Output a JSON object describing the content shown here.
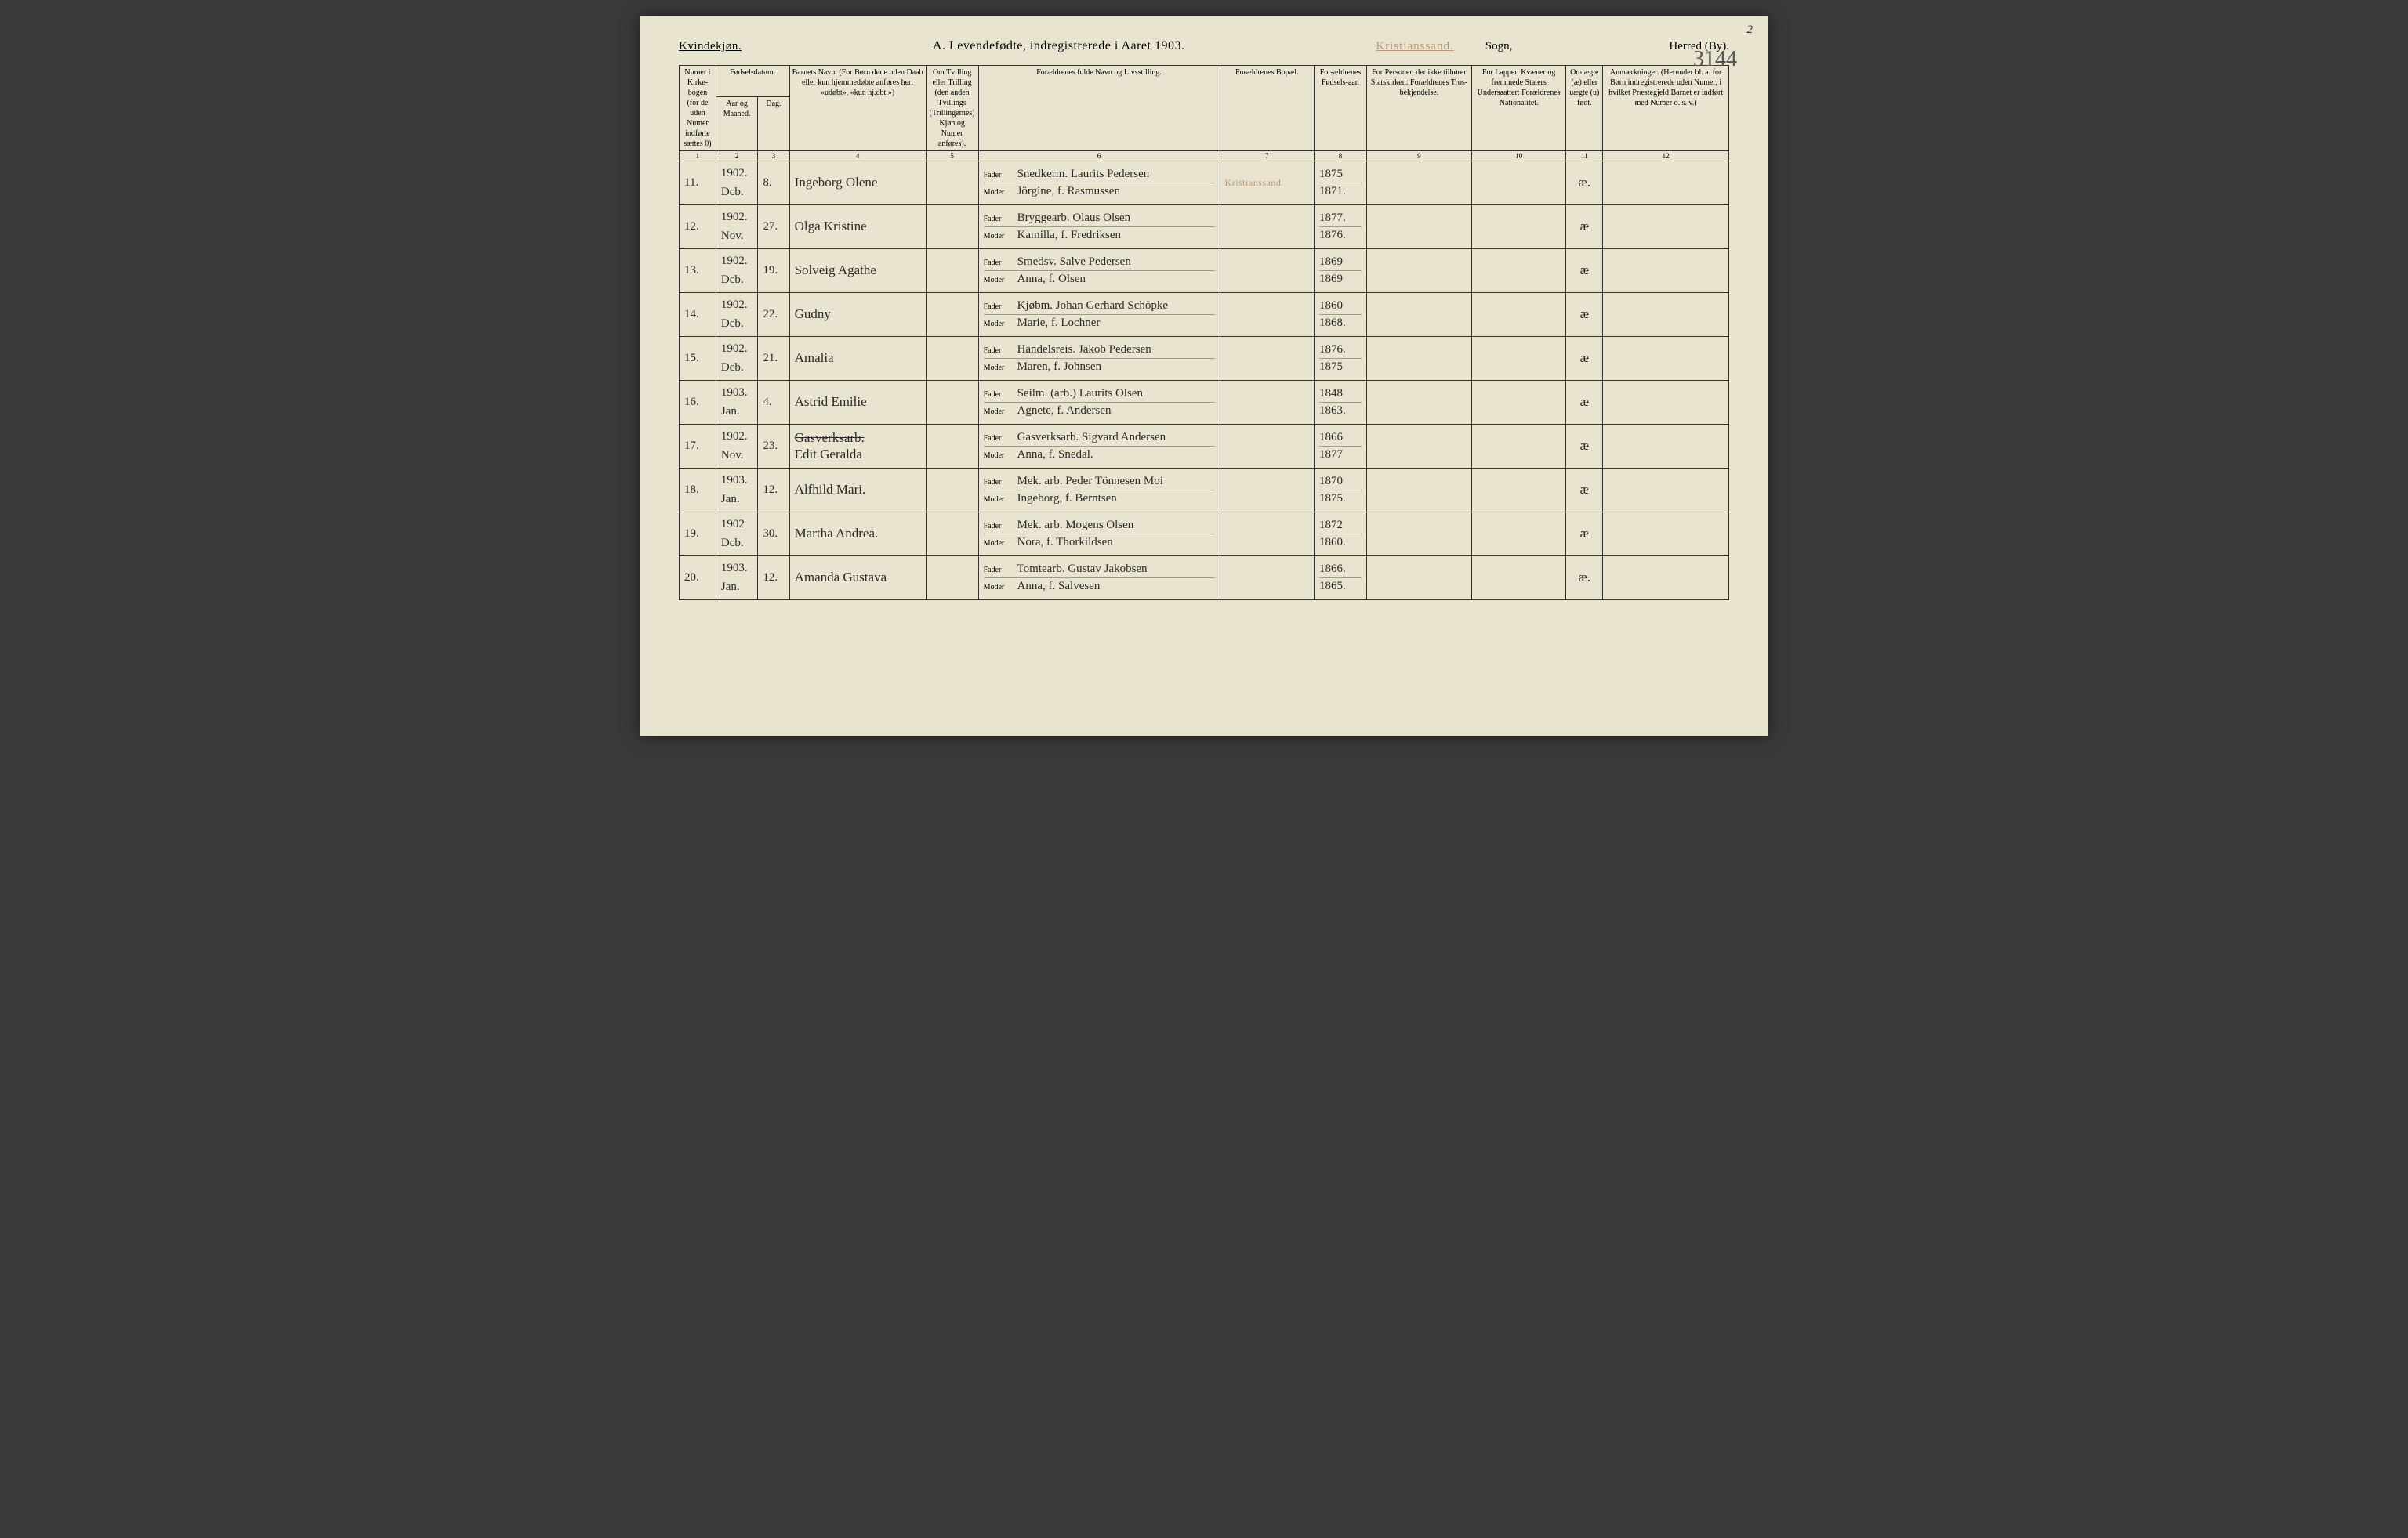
{
  "pageNumberTop": "2",
  "handwrittenTopRight": "3144",
  "genderLabel": "Kvindekjøn.",
  "title": "A.  Levendefødte, indregistrerede i Aaret 190",
  "titleYearDigit": "3",
  "stamp": "Kristianssand.",
  "sognLabel": "Sogn,",
  "herredLabel": "Herred (By).",
  "columns": {
    "c1": "Numer i Kirke-bogen (for de uden Numer indførte sættes 0)",
    "c2top": "Fødselsdatum.",
    "c2a": "Aar og Maaned.",
    "c2b": "Dag.",
    "c3": "Barnets Navn.\n(For Børn døde uden Daab eller kun hjemmedøbte anføres her: «udøbt», «kun hj.dbt.»)",
    "c4": "Om Tvilling eller Trilling (den anden Tvillings (Trillingernes) Kjøn og Numer anføres).",
    "c5": "Forældrenes fulde Navn og Livsstilling.",
    "c6": "Forældrenes Bopæl.",
    "c7": "For-ældrenes Fødsels-aar.",
    "c8": "For Personer, der ikke tilhører Statskirken: Forældrenes Tros-bekjendelse.",
    "c9": "For Lapper, Kvæner og fremmede Staters Undersaatter: Forældrenes Nationalitet.",
    "c10": "Om ægte (æ) eller uægte (u) født.",
    "c11": "Anmærkninger.\n(Herunder bl. a. for Børn indregistrerede uden Numer, i hvilket Præstegjeld Barnet er indført med Numer o. s. v.)"
  },
  "colnums": [
    "1",
    "2",
    "3",
    "4",
    "5",
    "6",
    "7",
    "8",
    "9",
    "10",
    "11",
    "12"
  ],
  "faderLabel": "Fader",
  "moderLabel": "Moder",
  "rows": [
    {
      "num": "11.",
      "year": "1902.",
      "month": "Dcb.",
      "day": "8.",
      "name": "Ingeborg Olene",
      "fader": "Snedkerm. Laurits Pedersen",
      "moder": "Jörgine, f. Rasmussen",
      "residence": "Kristianssand.",
      "residenceStamp": true,
      "fy": "1875",
      "my": "1871.",
      "legit": "æ."
    },
    {
      "num": "12.",
      "year": "1902.",
      "month": "Nov.",
      "day": "27.",
      "name": "Olga Kristine",
      "fader": "Bryggearb. Olaus Olsen",
      "moder": "Kamilla, f. Fredriksen",
      "residence": "",
      "fy": "1877.",
      "my": "1876.",
      "legit": "æ"
    },
    {
      "num": "13.",
      "year": "1902.",
      "month": "Dcb.",
      "day": "19.",
      "name": "Solveig Agathe",
      "fader": "Smedsv. Salve Pedersen",
      "moder": "Anna, f. Olsen",
      "residence": "",
      "fy": "1869",
      "my": "1869",
      "legit": "æ"
    },
    {
      "num": "14.",
      "year": "1902.",
      "month": "Dcb.",
      "day": "22.",
      "name": "Gudny",
      "fader": "Kjøbm. Johan Gerhard Schöpke",
      "moder": "Marie, f. Lochner",
      "residence": "",
      "fy": "1860",
      "my": "1868.",
      "legit": "æ"
    },
    {
      "num": "15.",
      "year": "1902.",
      "month": "Dcb.",
      "day": "21.",
      "name": "Amalia",
      "fader": "Handelsreis. Jakob Pedersen",
      "moder": "Maren, f. Johnsen",
      "residence": "",
      "fy": "1876.",
      "my": "1875",
      "legit": "æ"
    },
    {
      "num": "16.",
      "year": "1903.",
      "month": "Jan.",
      "day": "4.",
      "name": "Astrid Emilie",
      "fader": "Seilm. (arb.) Laurits Olsen",
      "moder": "Agnete, f. Andersen",
      "residence": "",
      "fy": "1848",
      "my": "1863.",
      "legit": "æ"
    },
    {
      "num": "17.",
      "year": "1902.",
      "month": "Nov.",
      "day": "23.",
      "name": "Edit Geralda",
      "nameStruck": "Gasverksarb.",
      "fader": "Gasverksarb. Sigvard Andersen",
      "moder": "Anna, f. Snedal.",
      "residence": "",
      "fy": "1866",
      "my": "1877",
      "legit": "æ"
    },
    {
      "num": "18.",
      "year": "1903.",
      "month": "Jan.",
      "day": "12.",
      "name": "Alfhild Mari.",
      "fader": "Mek. arb. Peder Tönnesen Moi",
      "moder": "Ingeborg, f. Berntsen",
      "residence": "",
      "fy": "1870",
      "my": "1875.",
      "legit": "æ"
    },
    {
      "num": "19.",
      "year": "1902",
      "month": "Dcb.",
      "day": "30.",
      "name": "Martha Andrea.",
      "fader": "Mek. arb. Mogens Olsen",
      "moder": "Nora, f. Thorkildsen",
      "residence": "",
      "fy": "1872",
      "my": "1860.",
      "legit": "æ"
    },
    {
      "num": "20.",
      "year": "1903.",
      "month": "Jan.",
      "day": "12.",
      "name": "Amanda Gustava",
      "fader": "Tomtearb. Gustav Jakobsen",
      "moder": "Anna, f. Salvesen",
      "residence": "",
      "fy": "1866.",
      "my": "1865.",
      "legit": "æ."
    }
  ]
}
